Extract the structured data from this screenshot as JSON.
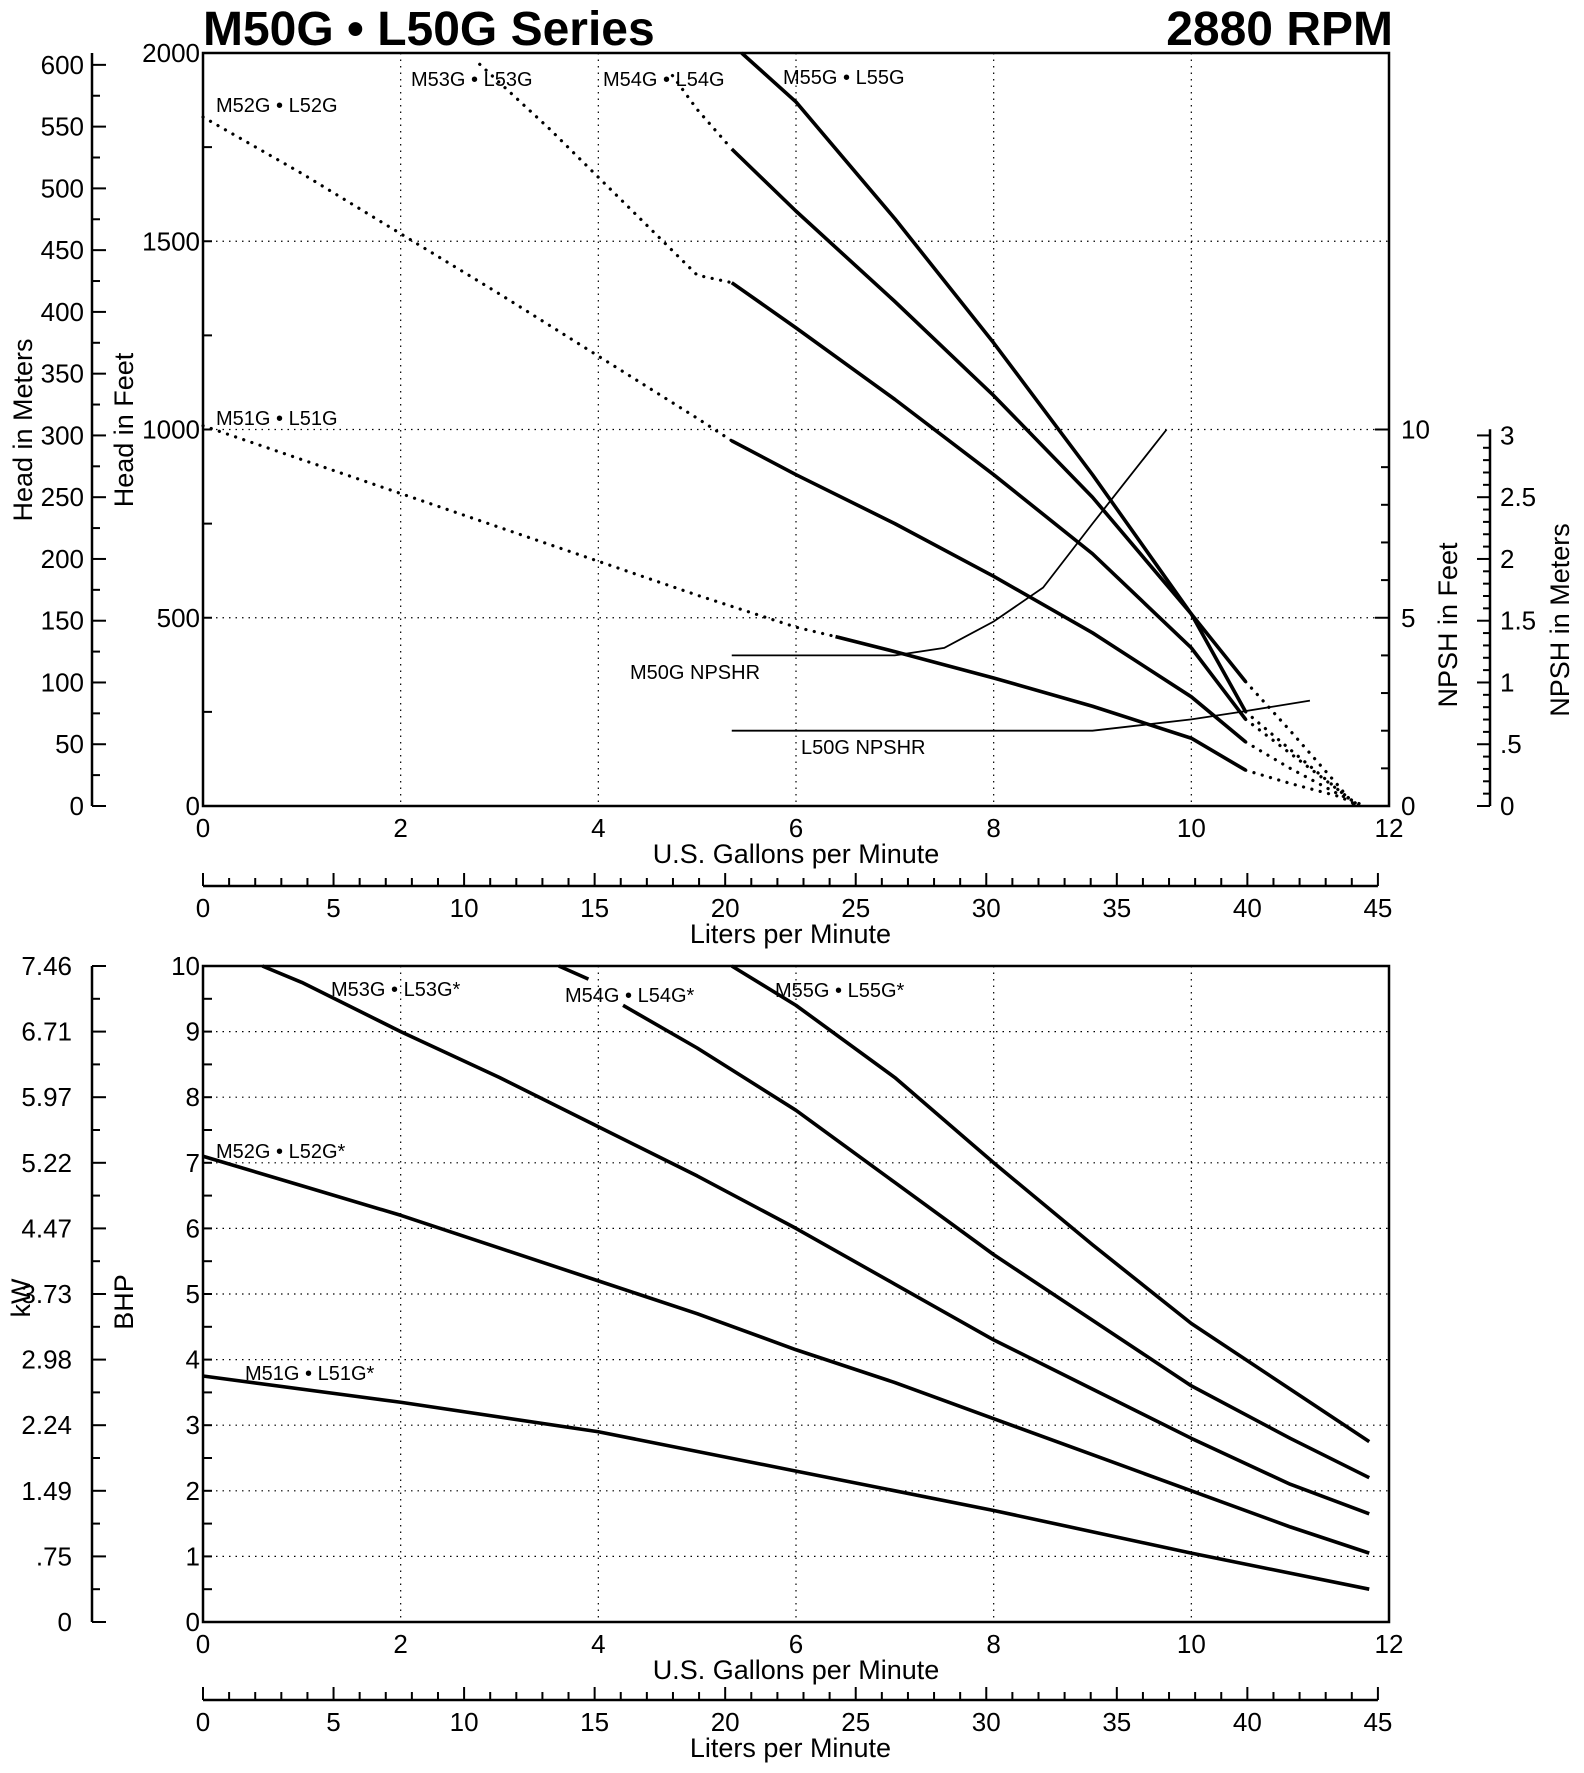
{
  "title": "M50G • L50G Series",
  "rpm": "2880 RPM",
  "chart_data": [
    {
      "type": "line",
      "name": "head",
      "xlabel": "U.S. Gallons per Minute",
      "x2label": "Liters per Minute",
      "ylabel": "Head in Feet",
      "y2label": "Head in Meters",
      "y3label": "NPSH in Feet",
      "y4label": "NPSH in Meters",
      "xlim": [
        0,
        12
      ],
      "x2lim": [
        0,
        45
      ],
      "ylim": [
        0,
        2000
      ],
      "y2lim": [
        0,
        609.6
      ],
      "y3lim": [
        0,
        20
      ],
      "y4lim": [
        0,
        6.1
      ],
      "xticks": [
        0,
        2,
        4,
        6,
        8,
        10,
        12
      ],
      "x2ticks": [
        0,
        5,
        10,
        15,
        20,
        25,
        30,
        35,
        40,
        45
      ],
      "yticks": [
        0,
        500,
        1000,
        1500,
        2000
      ],
      "y2ticks": [
        "0",
        "50",
        "100",
        "150",
        "200",
        "250",
        "300",
        "350",
        "400",
        "450",
        "500",
        "550",
        "600"
      ],
      "y3ticks": [
        "0",
        "5",
        "10"
      ],
      "y4ticks": [
        "0",
        ".5",
        "1",
        "1.5",
        "2",
        "2.5",
        "3"
      ],
      "grid": true,
      "series": [
        {
          "name": "M51G • L51G",
          "dotted": {
            "x": [
              0,
              1,
              2,
              3,
              4,
              5,
              6,
              6.4
            ],
            "y": [
              1010,
              920,
              830,
              740,
              650,
              560,
              475,
              450
            ]
          },
          "solid": {
            "x": [
              6.4,
              7,
              8,
              9,
              10,
              10.55
            ],
            "y": [
              450,
              410,
              340,
              265,
              180,
              95
            ]
          },
          "tail": {
            "x": [
              10.55,
              11,
              11.5,
              11.7
            ],
            "y": [
              95,
              60,
              25,
              0
            ]
          }
        },
        {
          "name": "M52G • L52G",
          "dotted": {
            "x": [
              0,
              1,
              2,
              3,
              4,
              5,
              5.35
            ],
            "y": [
              1830,
              1680,
              1520,
              1360,
              1195,
              1030,
              970
            ]
          },
          "solid": {
            "x": [
              5.35,
              6,
              7,
              8,
              9,
              10,
              10.55
            ],
            "y": [
              970,
              880,
              750,
              610,
              460,
              290,
              170
            ]
          },
          "tail": {
            "x": [
              10.55,
              11,
              11.5,
              11.75
            ],
            "y": [
              170,
              100,
              30,
              0
            ]
          }
        },
        {
          "name": "M53G • L53G",
          "dotted": {
            "x": [
              2.8,
              3.5,
              4,
              4.5,
              5,
              5.35
            ],
            "y": [
              1970,
              1800,
              1670,
              1540,
              1410,
              1390
            ]
          },
          "solid": {
            "x": [
              5.35,
              6,
              7,
              8,
              9,
              10,
              10.55
            ],
            "y": [
              1390,
              1270,
              1080,
              880,
              670,
              420,
              230
            ]
          },
          "tail": {
            "x": [
              10.55,
              11,
              11.5,
              11.7
            ],
            "y": [
              230,
              140,
              40,
              0
            ]
          }
        },
        {
          "name": "M54G • L54G",
          "dotted": {
            "x": [
              4.75,
              5,
              5.35
            ],
            "y": [
              1940,
              1850,
              1745
            ]
          },
          "solid": {
            "x": [
              5.35,
              6,
              7,
              8,
              9,
              10,
              10.55
            ],
            "y": [
              1745,
              1580,
              1340,
              1090,
              820,
              510,
              250
            ]
          },
          "tail": {
            "x": [
              10.55,
              11,
              11.5,
              11.7
            ],
            "y": [
              250,
              150,
              40,
              0
            ]
          }
        },
        {
          "name": "M55G • L55G",
          "dotted": {
            "x": [],
            "y": []
          },
          "solid": {
            "x": [
              5.45,
              6,
              7,
              8,
              9,
              10,
              10.55
            ],
            "y": [
              2000,
              1870,
              1560,
              1230,
              880,
              510,
              330
            ]
          },
          "tail": {
            "x": [
              10.55,
              11,
              11.5,
              11.65
            ],
            "y": [
              330,
              200,
              50,
              0
            ]
          }
        }
      ],
      "npsh": [
        {
          "name": "M50G  NPSHR",
          "x": [
            5.35,
            6,
            7,
            7.5,
            8,
            8.5,
            9,
            9.3,
            9.75
          ],
          "y": [
            4.0,
            4.0,
            4.0,
            4.2,
            4.9,
            5.8,
            7.5,
            8.5,
            10.0
          ]
        },
        {
          "name": "L50G NPSHR",
          "x": [
            5.35,
            7,
            8,
            9,
            10,
            10.5,
            11.2
          ],
          "y": [
            2.0,
            2.0,
            2.0,
            2.0,
            2.3,
            2.5,
            2.8
          ]
        }
      ]
    },
    {
      "type": "line",
      "name": "power",
      "xlabel": "U.S. Gallons per Minute",
      "x2label": "Liters per Minute",
      "ylabel": "BHP",
      "y2label": "kW",
      "xlim": [
        0,
        12
      ],
      "x2lim": [
        0,
        45
      ],
      "ylim": [
        0,
        10
      ],
      "xticks": [
        0,
        2,
        4,
        6,
        8,
        10,
        12
      ],
      "x2ticks": [
        0,
        5,
        10,
        15,
        20,
        25,
        30,
        35,
        40,
        45
      ],
      "yticks": [
        0,
        1,
        2,
        3,
        4,
        5,
        6,
        7,
        8,
        9,
        10
      ],
      "y2ticks": [
        "0",
        ".75",
        "1.49",
        "2.24",
        "2.98",
        "3.73",
        "4.47",
        "5.22",
        "5.97",
        "6.71",
        "7.46"
      ],
      "grid": true,
      "series": [
        {
          "name": "M51G • L51G*",
          "segments": [
            {
              "x": [
                0,
                2,
                4,
                6,
                8,
                10,
                11.8
              ],
              "y": [
                3.75,
                3.35,
                2.9,
                2.3,
                1.7,
                1.05,
                0.5
              ]
            }
          ]
        },
        {
          "name": "M52G • L52G*",
          "segments": [
            {
              "x": [
                0,
                1,
                2,
                3,
                4,
                5,
                6,
                7,
                8,
                9,
                10,
                11,
                11.8
              ],
              "y": [
                7.1,
                6.65,
                6.2,
                5.7,
                5.2,
                4.7,
                4.15,
                3.65,
                3.1,
                2.55,
                2.0,
                1.45,
                1.05
              ]
            }
          ]
        },
        {
          "name": "M53G • L53G*",
          "segments": [
            {
              "x": [
                0.6,
                1,
                2,
                3,
                4,
                5,
                6,
                7,
                8,
                9,
                10,
                11,
                11.8
              ],
              "y": [
                10,
                9.75,
                9.0,
                8.3,
                7.55,
                6.8,
                6.0,
                5.15,
                4.3,
                3.55,
                2.8,
                2.1,
                1.65
              ]
            }
          ]
        },
        {
          "name": "M54G • L54G*",
          "segments": [
            {
              "x": [
                3.6,
                3.9
              ],
              "y": [
                10,
                9.8
              ]
            },
            {
              "x": [
                4.25,
                5,
                6,
                7,
                8,
                9,
                10,
                11,
                11.8
              ],
              "y": [
                9.4,
                8.75,
                7.8,
                6.7,
                5.6,
                4.6,
                3.6,
                2.8,
                2.2
              ]
            }
          ]
        },
        {
          "name": "M55G • L55G*",
          "segments": [
            {
              "x": [
                5.35,
                6,
                7,
                8,
                9,
                10,
                11,
                11.8
              ],
              "y": [
                10,
                9.4,
                8.3,
                7.0,
                5.75,
                4.55,
                3.55,
                2.75
              ]
            }
          ]
        }
      ]
    }
  ]
}
